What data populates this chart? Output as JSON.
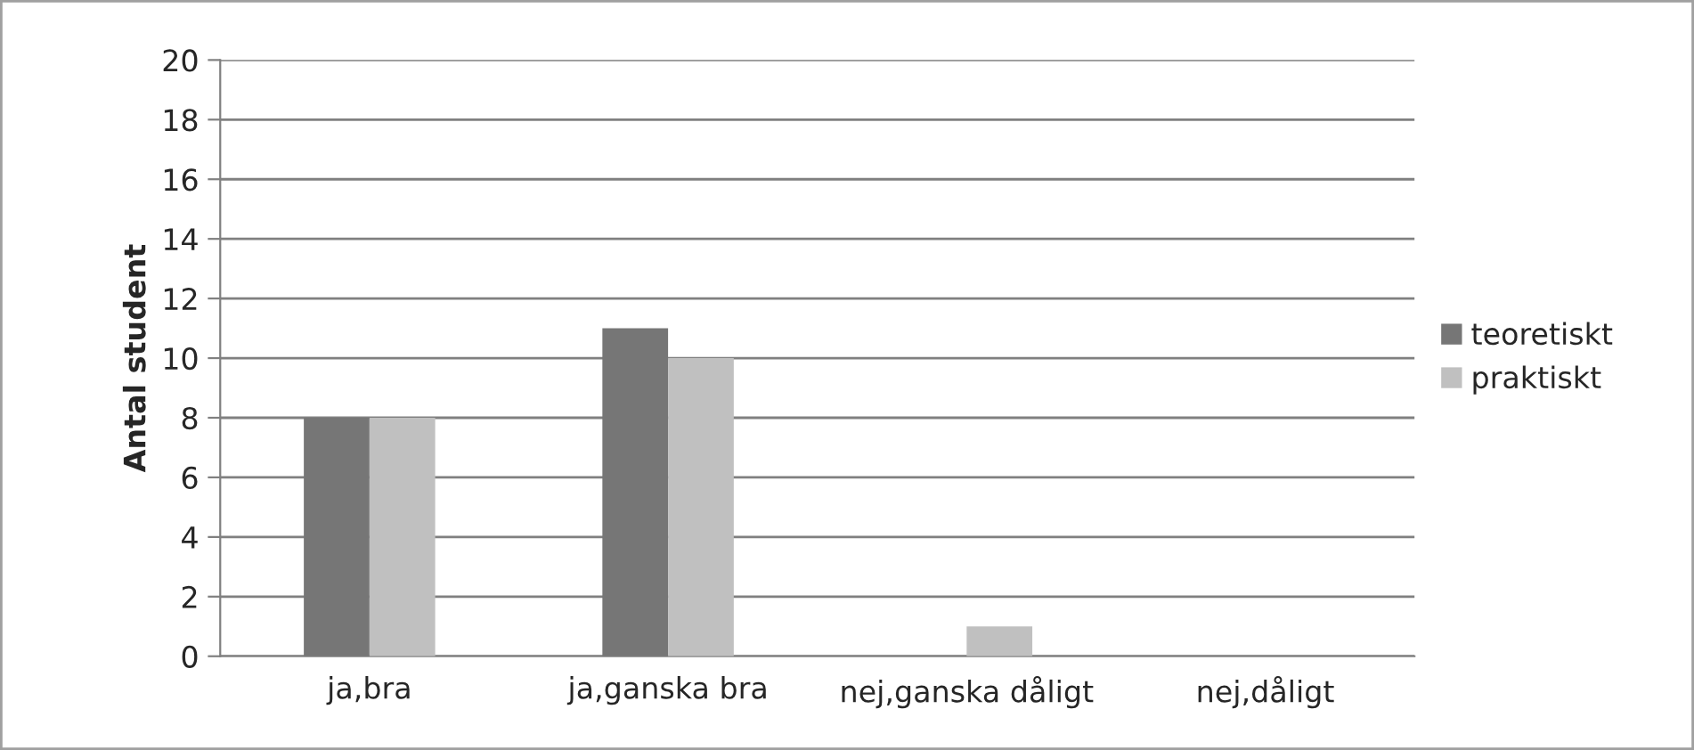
{
  "chart_data": {
    "type": "bar",
    "ylabel": "Antal student",
    "categories": [
      "ja,bra",
      "ja,ganska bra",
      "nej,ganska dåligt",
      "nej,dåligt"
    ],
    "series": [
      {
        "name": "teoretiskt",
        "color": "#767676",
        "values": [
          8,
          11,
          0,
          0
        ]
      },
      {
        "name": "praktiskt",
        "color": "#c0c0c0",
        "values": [
          8,
          10,
          1,
          0
        ]
      }
    ],
    "ylim": [
      0,
      20
    ],
    "yticks": [
      0,
      2,
      4,
      6,
      8,
      10,
      12,
      14,
      16,
      18,
      20
    ],
    "grid": "y",
    "legend": "right"
  }
}
